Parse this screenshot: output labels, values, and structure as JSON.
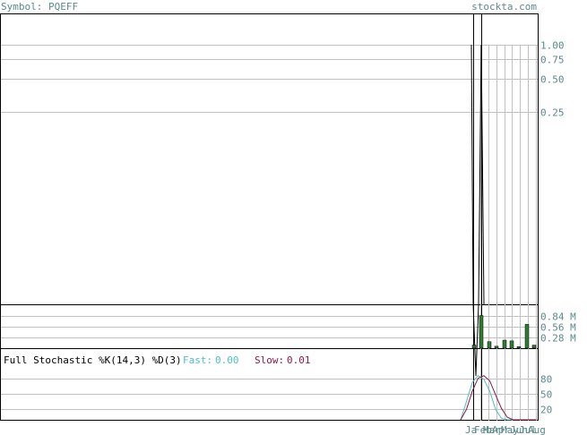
{
  "header": {
    "symbol_label": "Symbol: PQEFF",
    "site_label": "stockta.com"
  },
  "colors": {
    "background": "#ffffff",
    "frame": "#000000",
    "grid": "#c0c0c0",
    "axis_text": "#5a8a8a",
    "price": "#000000",
    "volume_bar": "#2e7d32",
    "fast_line": "#4fbfbf",
    "slow_line": "#8b1a4a"
  },
  "chart_data": [
    {
      "type": "line",
      "name": "price",
      "y_scale": "log",
      "ylim": [
        0.25,
        1.0
      ],
      "y_ticks": [
        {
          "value": 1.0,
          "label": "1.00"
        },
        {
          "value": 0.75,
          "label": "0.75"
        },
        {
          "value": 0.5,
          "label": "0.50"
        },
        {
          "value": 0.25,
          "label": "0.25"
        }
      ],
      "grid": true,
      "x_labels": [
        "Ja",
        "Feb",
        "Mar",
        "Apr",
        "May",
        "Jun",
        "Jul",
        "Aug"
      ],
      "points": [
        {
          "x": 0,
          "high": 1.0,
          "low": 0.1
        },
        {
          "x": 1,
          "high": 1.0,
          "low": 0.1
        }
      ]
    },
    {
      "type": "bar",
      "name": "volume",
      "ylim": [
        0,
        1.12
      ],
      "y_ticks": [
        {
          "value": 0.84,
          "label": "0.84 M"
        },
        {
          "value": 0.56,
          "label": "0.56 M"
        },
        {
          "value": 0.28,
          "label": "0.28 M"
        }
      ],
      "grid": true,
      "values": [
        0.08,
        0.85,
        0.17,
        0.05,
        0.21,
        0.19,
        0.04,
        0.62,
        0.08
      ]
    },
    {
      "type": "line",
      "name": "stochastic",
      "title": "Full Stochastic %K(14,3) %D(3)",
      "fast_label": "Fast:",
      "fast_value": "0.00",
      "slow_label": "Slow:",
      "slow_value": "0.01",
      "ylim": [
        0,
        100
      ],
      "y_ticks": [
        {
          "value": 80,
          "label": "80"
        },
        {
          "value": 50,
          "label": "50"
        },
        {
          "value": 20,
          "label": "20"
        }
      ],
      "grid": true,
      "series": [
        {
          "values": [
            0,
            35,
            72,
            85,
            78,
            55,
            20,
            3,
            0,
            0,
            0,
            0,
            0,
            0
          ]
        },
        {
          "values": [
            0,
            20,
            55,
            80,
            85,
            75,
            48,
            22,
            5,
            0,
            0,
            0,
            0,
            0
          ]
        }
      ]
    }
  ]
}
